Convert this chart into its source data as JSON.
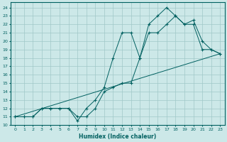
{
  "xlabel": "Humidex (Indice chaleur)",
  "bg_color": "#cce8e8",
  "grid_color": "#a0c8c8",
  "line_color": "#006060",
  "xlim": [
    -0.5,
    23.5
  ],
  "ylim": [
    10,
    24.6
  ],
  "yticks": [
    10,
    11,
    12,
    13,
    14,
    15,
    16,
    17,
    18,
    19,
    20,
    21,
    22,
    23,
    24
  ],
  "xticks": [
    0,
    1,
    2,
    3,
    4,
    5,
    6,
    7,
    8,
    9,
    10,
    11,
    12,
    13,
    14,
    15,
    16,
    17,
    18,
    19,
    20,
    21,
    22,
    23
  ],
  "line1_x": [
    0,
    1,
    2,
    3,
    4,
    5,
    6,
    7,
    8,
    9,
    10,
    11,
    12,
    13,
    14,
    15,
    16,
    17,
    18,
    19,
    20,
    21,
    22,
    23
  ],
  "line1_y": [
    11,
    11,
    11,
    12,
    12,
    12,
    12,
    11,
    11,
    12,
    14,
    14.5,
    15,
    15,
    18,
    21,
    21,
    22,
    23,
    22,
    22,
    19,
    19,
    18.5
  ],
  "line2_x": [
    0,
    1,
    2,
    3,
    4,
    5,
    6,
    7,
    8,
    9,
    10,
    11,
    12,
    13,
    14,
    15,
    16,
    17,
    18,
    19,
    20,
    21,
    22,
    23
  ],
  "line2_y": [
    11,
    11,
    11,
    12,
    12,
    12,
    12,
    10.5,
    12,
    13,
    14.5,
    18,
    21,
    21,
    18,
    22,
    23,
    24,
    23,
    22,
    22.5,
    20,
    19,
    18.5
  ],
  "line3_x": [
    0,
    23
  ],
  "line3_y": [
    11,
    18.5
  ]
}
